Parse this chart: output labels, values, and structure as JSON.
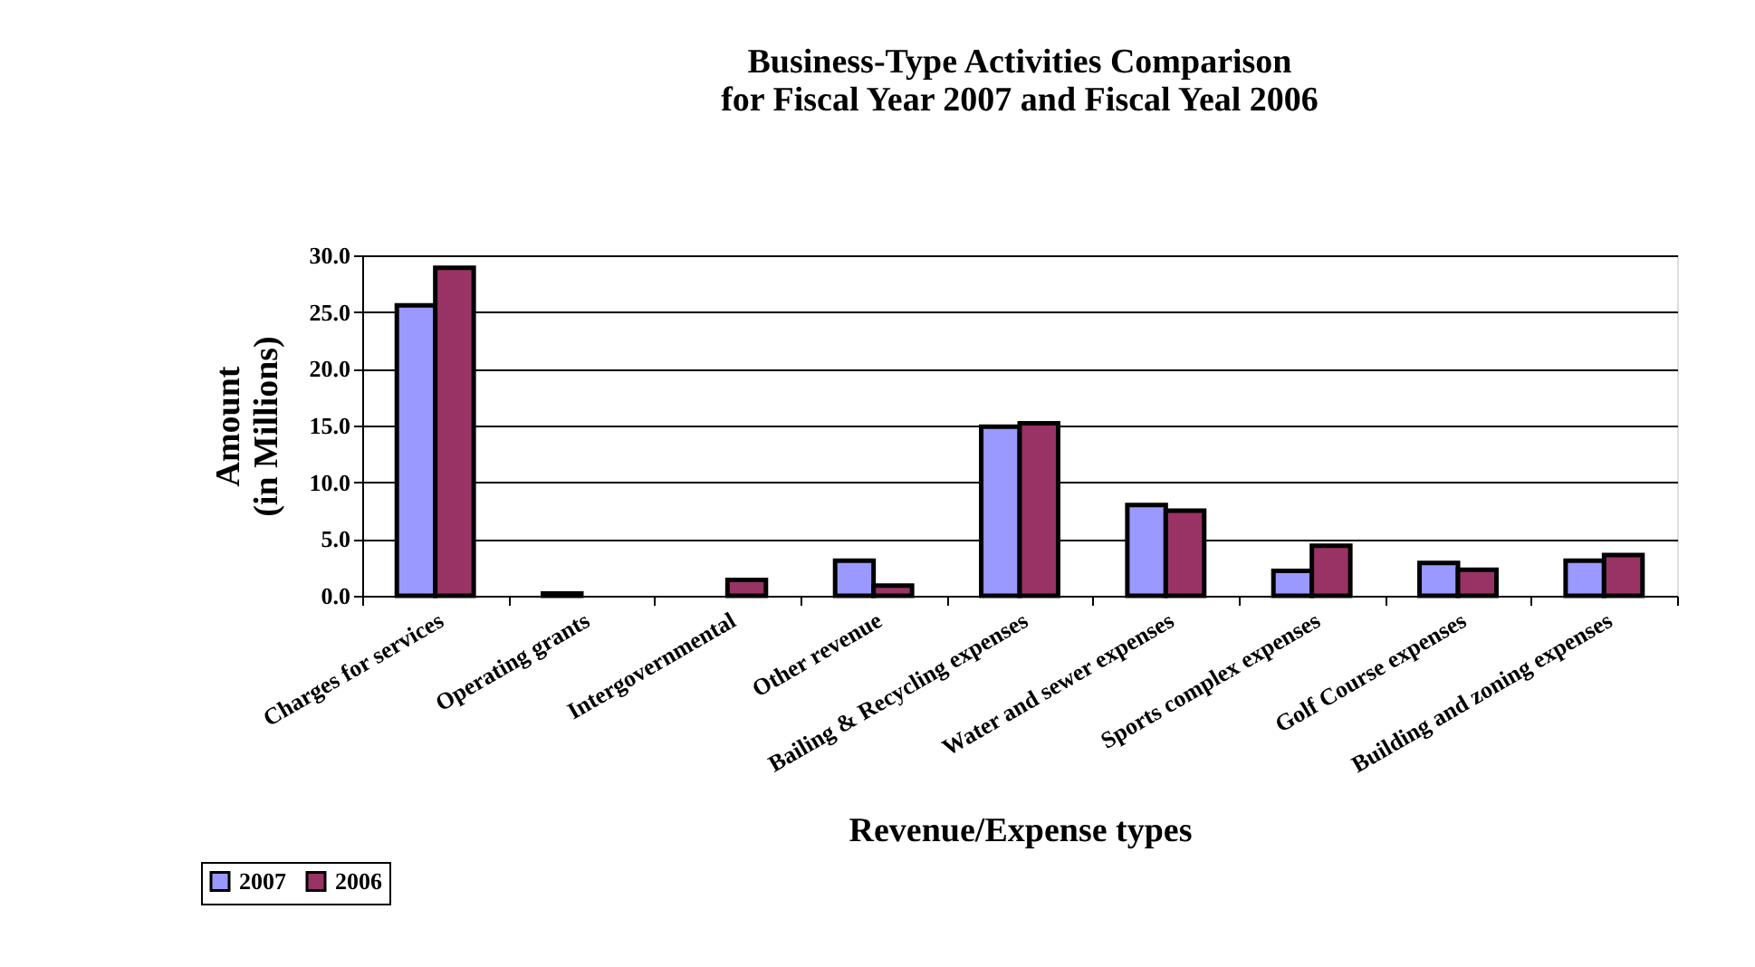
{
  "chart_data": {
    "type": "bar",
    "title": "Business-Type Activities Comparison\nfor Fiscal Year 2007 and Fiscal Yeal 2006",
    "xlabel": "Revenue/Expense types",
    "ylabel": "Amount\n(in Millions)",
    "categories": [
      "Charges for services",
      "Operating grants",
      "Intergovernmental",
      "Other revenue",
      "Bailing & Recycling expenses",
      "Water and sewer expenses",
      "Sports complex expenses",
      "Golf Course expenses",
      "Building and zoning expenses"
    ],
    "series": [
      {
        "name": "2007",
        "color": "#9999ff",
        "values": [
          25.6,
          0.2,
          null,
          3.1,
          14.9,
          8.0,
          2.2,
          2.9,
          3.1
        ]
      },
      {
        "name": "2006",
        "color": "#993366",
        "values": [
          28.9,
          null,
          1.4,
          0.9,
          15.2,
          7.5,
          4.4,
          2.3,
          3.6
        ]
      }
    ],
    "ylim": [
      0,
      30
    ],
    "yticks": [
      {
        "value": 0,
        "label": "0.0"
      },
      {
        "value": 5,
        "label": "5.0"
      },
      {
        "value": 10,
        "label": "10.0"
      },
      {
        "value": 15,
        "label": "15.0"
      },
      {
        "value": 20,
        "label": "20.0"
      },
      {
        "value": 25,
        "label": "25.0"
      },
      {
        "value": 30,
        "label": "30.0"
      }
    ],
    "grid": "y",
    "legend": "bottom left"
  }
}
